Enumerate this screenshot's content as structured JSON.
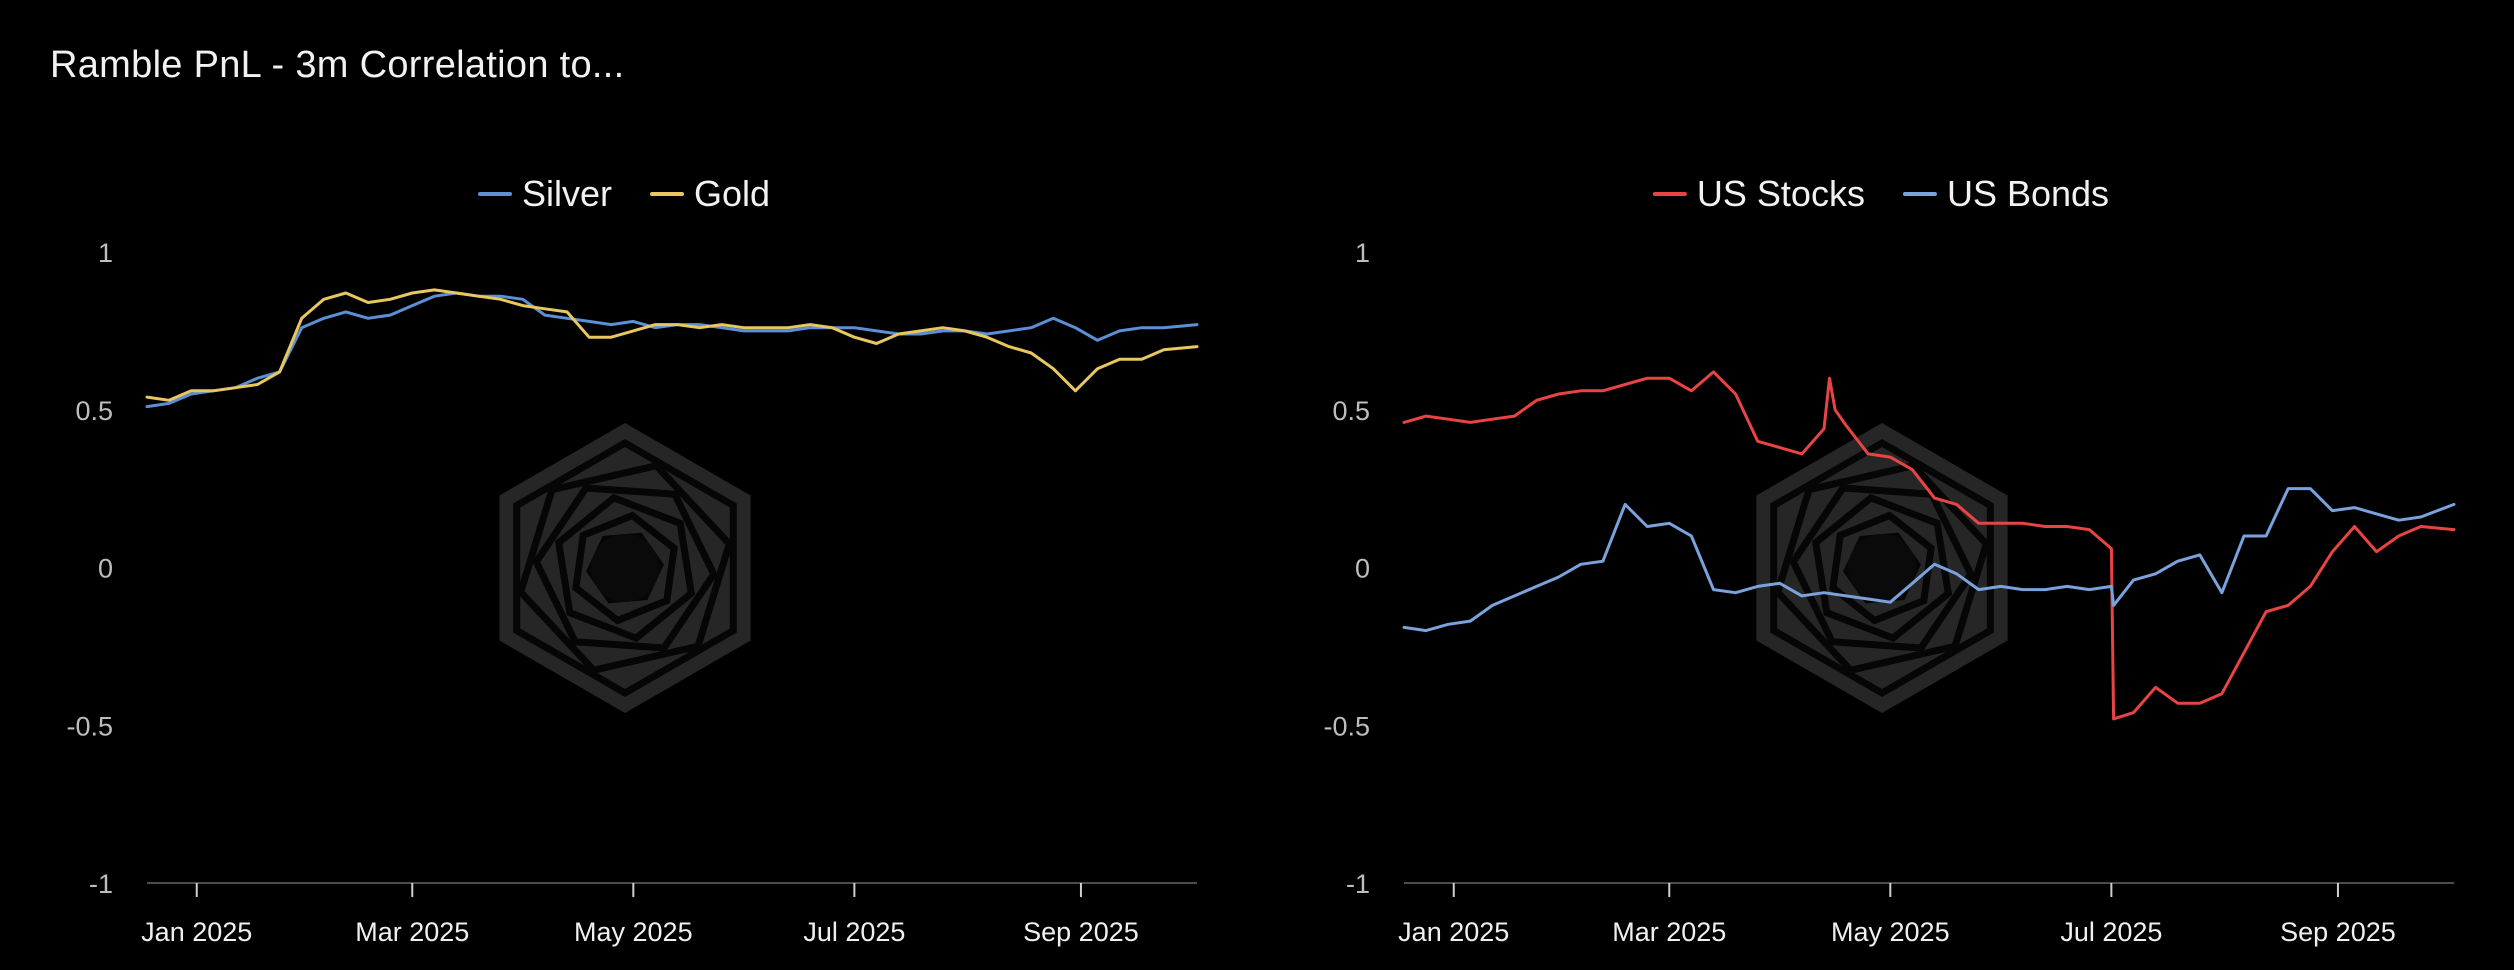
{
  "page": {
    "title": "Ramble PnL - 3m Correlation to..."
  },
  "colors": {
    "silver": "#5b8fd6",
    "gold": "#e8c760",
    "us_stocks": "#e84444",
    "us_bonds": "#7aa2dd",
    "axis": "#666666",
    "watermark": "#262626"
  },
  "icons": {
    "watermark": "hexagon-spiral-logo-icon"
  },
  "chart_data": [
    {
      "type": "line",
      "title": "",
      "xlabel": "",
      "ylabel": "",
      "ylim": [
        -1,
        1
      ],
      "yticks": [
        "1",
        "0.5",
        "0",
        "-0.5",
        "-1"
      ],
      "yticks_values": [
        1,
        0.5,
        0,
        -0.5,
        -1
      ],
      "xlim": [
        0,
        9.5
      ],
      "xticks": [
        "Jan 2025",
        "Mar 2025",
        "May 2025",
        "Jul 2025",
        "Sep 2025"
      ],
      "xticks_values": [
        0.45,
        2.4,
        4.4,
        6.4,
        8.45
      ],
      "legend": "top-center",
      "grid": false,
      "series": [
        {
          "name": "Silver",
          "color": "#5b8fd6",
          "x": [
            0,
            0.2,
            0.4,
            0.6,
            0.8,
            1.0,
            1.2,
            1.4,
            1.6,
            1.8,
            2.0,
            2.2,
            2.4,
            2.6,
            2.8,
            3.0,
            3.2,
            3.4,
            3.6,
            3.8,
            4.0,
            4.2,
            4.4,
            4.6,
            4.8,
            5.0,
            5.2,
            5.4,
            5.6,
            5.8,
            6.0,
            6.2,
            6.4,
            6.6,
            6.8,
            7.0,
            7.2,
            7.4,
            7.6,
            7.8,
            8.0,
            8.2,
            8.4,
            8.6,
            8.8,
            9.0,
            9.2,
            9.5
          ],
          "values": [
            0.51,
            0.52,
            0.55,
            0.56,
            0.57,
            0.6,
            0.62,
            0.76,
            0.79,
            0.81,
            0.79,
            0.8,
            0.83,
            0.86,
            0.87,
            0.86,
            0.86,
            0.85,
            0.8,
            0.79,
            0.78,
            0.77,
            0.78,
            0.76,
            0.77,
            0.77,
            0.76,
            0.75,
            0.75,
            0.75,
            0.76,
            0.76,
            0.76,
            0.75,
            0.74,
            0.74,
            0.75,
            0.75,
            0.74,
            0.75,
            0.76,
            0.79,
            0.76,
            0.72,
            0.75,
            0.76,
            0.76,
            0.77
          ]
        },
        {
          "name": "Gold",
          "color": "#e8c760",
          "x": [
            0,
            0.2,
            0.4,
            0.6,
            0.8,
            1.0,
            1.2,
            1.4,
            1.6,
            1.8,
            2.0,
            2.2,
            2.4,
            2.6,
            2.8,
            3.0,
            3.2,
            3.4,
            3.6,
            3.8,
            4.0,
            4.2,
            4.4,
            4.6,
            4.8,
            5.0,
            5.2,
            5.4,
            5.6,
            5.8,
            6.0,
            6.2,
            6.4,
            6.6,
            6.8,
            7.0,
            7.2,
            7.4,
            7.6,
            7.8,
            8.0,
            8.2,
            8.4,
            8.6,
            8.8,
            9.0,
            9.2,
            9.5
          ],
          "values": [
            0.54,
            0.53,
            0.56,
            0.56,
            0.57,
            0.58,
            0.62,
            0.79,
            0.85,
            0.87,
            0.84,
            0.85,
            0.87,
            0.88,
            0.87,
            0.86,
            0.85,
            0.83,
            0.82,
            0.81,
            0.73,
            0.73,
            0.75,
            0.77,
            0.77,
            0.76,
            0.77,
            0.76,
            0.76,
            0.76,
            0.77,
            0.76,
            0.73,
            0.71,
            0.74,
            0.75,
            0.76,
            0.75,
            0.73,
            0.7,
            0.68,
            0.63,
            0.56,
            0.63,
            0.66,
            0.66,
            0.69,
            0.7
          ]
        }
      ]
    },
    {
      "type": "line",
      "title": "",
      "xlabel": "",
      "ylabel": "",
      "ylim": [
        -1,
        1
      ],
      "yticks": [
        "1",
        "0.5",
        "0",
        "-0.5",
        "-1"
      ],
      "yticks_values": [
        1,
        0.5,
        0,
        -0.5,
        -1
      ],
      "xlim": [
        0,
        9.5
      ],
      "xticks": [
        "Jan 2025",
        "Mar 2025",
        "May 2025",
        "Jul 2025",
        "Sep 2025"
      ],
      "xticks_values": [
        0.45,
        2.4,
        4.4,
        6.4,
        8.45
      ],
      "legend": "top-center",
      "grid": false,
      "series": [
        {
          "name": "US Stocks",
          "color": "#e84444",
          "x": [
            0,
            0.2,
            0.4,
            0.6,
            0.8,
            1.0,
            1.2,
            1.4,
            1.6,
            1.8,
            2.0,
            2.2,
            2.4,
            2.6,
            2.8,
            3.0,
            3.2,
            3.4,
            3.6,
            3.8,
            3.85,
            3.9,
            4.0,
            4.2,
            4.4,
            4.6,
            4.8,
            5.0,
            5.2,
            5.4,
            5.6,
            5.8,
            6.0,
            6.2,
            6.4,
            6.42,
            6.6,
            6.8,
            7.0,
            7.2,
            7.4,
            7.6,
            7.8,
            8.0,
            8.2,
            8.4,
            8.6,
            8.8,
            9.0,
            9.2,
            9.5
          ],
          "values": [
            0.46,
            0.48,
            0.47,
            0.46,
            0.47,
            0.48,
            0.53,
            0.55,
            0.56,
            0.56,
            0.58,
            0.6,
            0.6,
            0.56,
            0.62,
            0.55,
            0.4,
            0.38,
            0.36,
            0.44,
            0.6,
            0.5,
            0.45,
            0.36,
            0.35,
            0.31,
            0.22,
            0.2,
            0.14,
            0.14,
            0.14,
            0.13,
            0.13,
            0.12,
            0.06,
            -0.48,
            -0.46,
            -0.38,
            -0.43,
            -0.43,
            -0.4,
            -0.27,
            -0.14,
            -0.12,
            -0.06,
            0.05,
            0.13,
            0.05,
            0.1,
            0.13,
            0.12
          ]
        },
        {
          "name": "US Bonds",
          "color": "#7aa2dd",
          "x": [
            0,
            0.2,
            0.4,
            0.6,
            0.8,
            1.0,
            1.2,
            1.4,
            1.6,
            1.8,
            2.0,
            2.2,
            2.4,
            2.6,
            2.8,
            3.0,
            3.2,
            3.4,
            3.6,
            3.8,
            4.0,
            4.2,
            4.4,
            4.6,
            4.8,
            5.0,
            5.2,
            5.4,
            5.6,
            5.8,
            6.0,
            6.2,
            6.4,
            6.42,
            6.6,
            6.8,
            7.0,
            7.2,
            7.4,
            7.6,
            7.8,
            8.0,
            8.2,
            8.4,
            8.6,
            8.8,
            9.0,
            9.2,
            9.5
          ],
          "values": [
            -0.19,
            -0.2,
            -0.18,
            -0.17,
            -0.12,
            -0.09,
            -0.06,
            -0.03,
            0.01,
            0.02,
            0.2,
            0.13,
            0.14,
            0.1,
            -0.07,
            -0.08,
            -0.06,
            -0.05,
            -0.09,
            -0.08,
            -0.09,
            -0.1,
            -0.11,
            -0.05,
            0.01,
            -0.02,
            -0.07,
            -0.06,
            -0.07,
            -0.07,
            -0.06,
            -0.07,
            -0.06,
            -0.12,
            -0.04,
            -0.02,
            0.02,
            0.04,
            -0.08,
            0.1,
            0.1,
            0.25,
            0.25,
            0.18,
            0.19,
            0.17,
            0.15,
            0.16,
            0.2
          ]
        }
      ]
    }
  ]
}
